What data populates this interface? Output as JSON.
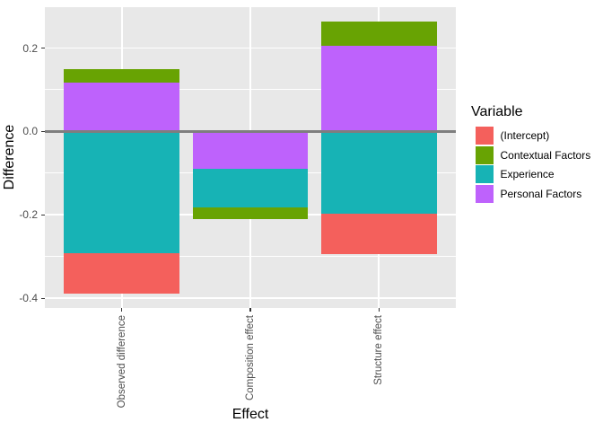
{
  "chart_data": {
    "type": "bar",
    "stacked": true,
    "title": "",
    "xlabel": "Effect",
    "ylabel": "Difference",
    "legend_title": "Variable",
    "legend_position": "right",
    "categories": [
      "Observed difference",
      "Composition effect",
      "Structure effect"
    ],
    "series": [
      {
        "name": "(Intercept)",
        "color": "#F4605C",
        "values": [
          -0.097,
          0.0,
          -0.098
        ]
      },
      {
        "name": "Contextual Factors",
        "color": "#68A303",
        "values": [
          0.033,
          -0.027,
          0.058
        ]
      },
      {
        "name": "Experience",
        "color": "#17B3B5",
        "values": [
          -0.291,
          -0.093,
          -0.196
        ]
      },
      {
        "name": "Personal Factors",
        "color": "#BE62FC",
        "values": [
          0.117,
          -0.089,
          0.206
        ]
      }
    ],
    "stack_order_from_zero": [
      "Personal Factors",
      "Experience",
      "Contextual Factors",
      "(Intercept)"
    ],
    "ylim": [
      -0.423,
      0.298
    ],
    "y_major_ticks": [
      {
        "value": 0.2,
        "label": "0.2"
      },
      {
        "value": 0.0,
        "label": "0.0"
      },
      {
        "value": -0.2,
        "label": "-0.2"
      },
      {
        "value": -0.4,
        "label": "-0.4"
      }
    ],
    "y_minor_ticks": [
      0.1,
      -0.1,
      -0.3
    ],
    "grid": true,
    "zero_line": true
  },
  "style": {
    "figure_bg": "#FFFFFF",
    "panel_bg": "#E8E8E8",
    "grid_color": "#FFFFFF",
    "zero_line_color": "#7E7E7E",
    "tick_mark_color": "#333333",
    "tick_label_color": "#4D4D4D",
    "title_color": "#000000"
  }
}
